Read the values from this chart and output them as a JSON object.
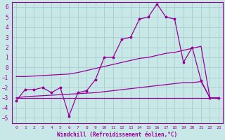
{
  "title": "",
  "xlabel": "Windchill (Refroidissement éolien,°C)",
  "ylabel": "",
  "background_color": "#c8e8e8",
  "line_color": "#990099",
  "grid_color": "#aacccc",
  "xlim": [
    -0.5,
    23.5
  ],
  "ylim": [
    -5.5,
    6.5
  ],
  "yticks": [
    -5,
    -4,
    -3,
    -2,
    -1,
    0,
    1,
    2,
    3,
    4,
    5,
    6
  ],
  "xticks": [
    0,
    1,
    2,
    3,
    4,
    5,
    6,
    7,
    8,
    9,
    10,
    11,
    12,
    13,
    14,
    15,
    16,
    17,
    18,
    19,
    20,
    21,
    22,
    23
  ],
  "main_line": [
    -3.3,
    -2.2,
    -2.2,
    -2.0,
    -2.5,
    -2.0,
    -4.8,
    -2.5,
    -2.3,
    -1.2,
    1.0,
    1.0,
    2.8,
    3.0,
    4.8,
    5.0,
    6.3,
    5.0,
    4.8,
    0.5,
    2.0,
    -1.3,
    -3.0,
    -3.0
  ],
  "line_upper": [
    -0.9,
    -0.9,
    -0.85,
    -0.8,
    -0.75,
    -0.7,
    -0.65,
    -0.5,
    -0.3,
    -0.1,
    0.1,
    0.3,
    0.5,
    0.7,
    0.9,
    1.0,
    1.2,
    1.4,
    1.5,
    1.7,
    1.9,
    2.1,
    -3.0,
    -3.1
  ],
  "line_lower": [
    -3.0,
    -2.9,
    -2.85,
    -2.8,
    -2.75,
    -2.7,
    -2.65,
    -2.6,
    -2.55,
    -2.5,
    -2.4,
    -2.3,
    -2.2,
    -2.1,
    -2.0,
    -1.9,
    -1.8,
    -1.7,
    -1.6,
    -1.5,
    -1.5,
    -1.4,
    -3.0,
    -3.0
  ],
  "line_flat": [
    -3.0,
    -3.0,
    -3.0,
    -3.0,
    -3.0,
    -3.0,
    -3.0,
    -3.0,
    -3.0,
    -3.0,
    -3.0,
    -3.0,
    -3.0,
    -3.0,
    -3.0,
    -3.0,
    -3.0,
    -3.0,
    -3.0,
    -3.0,
    -3.0,
    -3.0,
    -3.0,
    -3.0
  ]
}
